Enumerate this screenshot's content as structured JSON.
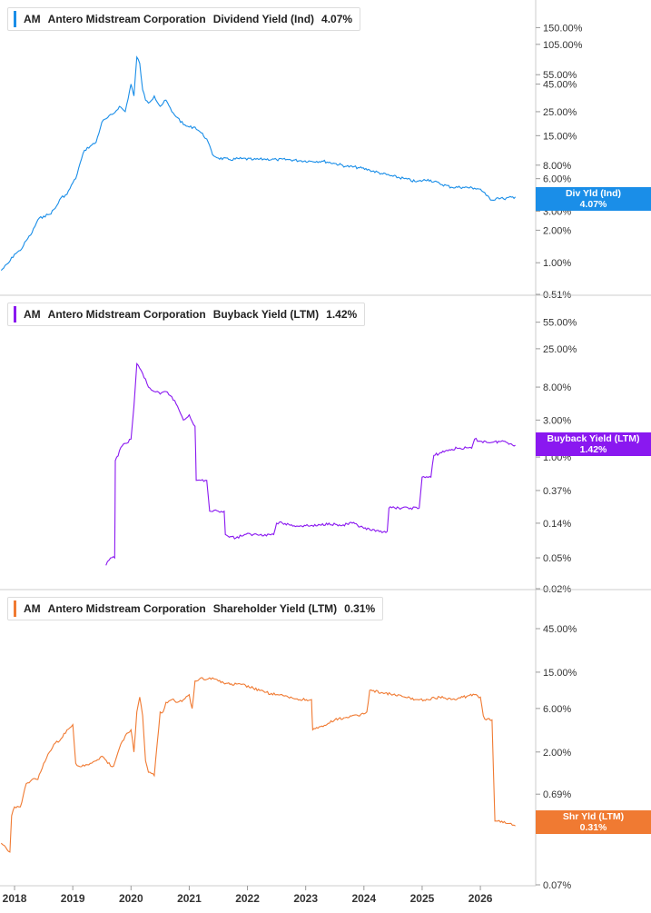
{
  "chart_data": [
    {
      "type": "line",
      "ticker": "AM",
      "company": "Antero Midstream Corporation",
      "metric": "Dividend Yield (Ind)",
      "current_value": "4.07%",
      "tag_label": "Div Yld (Ind)",
      "color": "#1a8ee8",
      "y_scale": "log",
      "ylim": [
        0.51,
        250
      ],
      "y_ticks": [
        {
          "label": "150.00%",
          "value": 150
        },
        {
          "label": "105.00%",
          "value": 105
        },
        {
          "label": "55.00%",
          "value": 55
        },
        {
          "label": "45.00%",
          "value": 45
        },
        {
          "label": "25.00%",
          "value": 25
        },
        {
          "label": "15.00%",
          "value": 15
        },
        {
          "label": "8.00%",
          "value": 8
        },
        {
          "label": "6.00%",
          "value": 6
        },
        {
          "label": "3.00%",
          "value": 3
        },
        {
          "label": "2.00%",
          "value": 2
        },
        {
          "label": "1.00%",
          "value": 1
        },
        {
          "label": "0.51%",
          "value": 0.51
        }
      ],
      "x": [
        2017.77,
        2017.9,
        2018.0,
        2018.1,
        2018.2,
        2018.3,
        2018.4,
        2018.5,
        2018.6,
        2018.7,
        2018.8,
        2018.9,
        2019.0,
        2019.05,
        2019.1,
        2019.2,
        2019.3,
        2019.4,
        2019.5,
        2019.6,
        2019.7,
        2019.8,
        2019.9,
        2020.0,
        2020.05,
        2020.1,
        2020.15,
        2020.2,
        2020.25,
        2020.3,
        2020.4,
        2020.5,
        2020.6,
        2020.7,
        2020.8,
        2020.9,
        2021.0,
        2021.1,
        2021.2,
        2021.3,
        2021.4,
        2021.5,
        2021.7,
        2021.9,
        2022.1,
        2022.3,
        2022.5,
        2022.7,
        2022.9,
        2023.1,
        2023.3,
        2023.5,
        2023.7,
        2023.9,
        2024.1,
        2024.3,
        2024.5,
        2024.7,
        2024.9,
        2025.1,
        2025.3,
        2025.5,
        2025.7,
        2025.9,
        2026.0,
        2026.1,
        2026.2,
        2026.3,
        2026.4,
        2026.6
      ],
      "values": [
        0.85,
        1.0,
        1.2,
        1.3,
        1.6,
        1.9,
        2.5,
        2.7,
        2.8,
        3.2,
        4.0,
        4.3,
        5.5,
        6.0,
        7.5,
        11,
        12,
        13,
        20,
        22,
        24,
        28,
        25,
        45,
        35,
        80,
        70,
        40,
        32,
        30,
        35,
        28,
        32,
        25,
        22,
        19,
        18,
        18,
        16,
        14,
        10,
        9.3,
        9.0,
        9.2,
        9.0,
        9.1,
        9.0,
        9.0,
        8.8,
        8.7,
        8.7,
        8.3,
        7.8,
        7.6,
        7.2,
        6.7,
        6.3,
        6.0,
        5.6,
        5.9,
        5.4,
        5.0,
        5.0,
        4.9,
        4.8,
        4.2,
        3.8,
        4.0,
        3.9,
        4.07
      ]
    },
    {
      "type": "line",
      "ticker": "AM",
      "company": "Antero Midstream Corporation",
      "metric": "Buyback Yield (LTM)",
      "current_value": "1.42%",
      "tag_label": "Buyback Yield (LTM)",
      "color": "#8a18f0",
      "y_scale": "log",
      "ylim": [
        0.02,
        110
      ],
      "y_ticks": [
        {
          "label": "55.00%",
          "value": 55
        },
        {
          "label": "25.00%",
          "value": 25
        },
        {
          "label": "8.00%",
          "value": 8
        },
        {
          "label": "3.00%",
          "value": 3
        },
        {
          "label": "1.00%",
          "value": 1
        },
        {
          "label": "0.37%",
          "value": 0.37
        },
        {
          "label": "0.14%",
          "value": 0.14
        },
        {
          "label": "0.05%",
          "value": 0.05
        },
        {
          "label": "0.02%",
          "value": 0.02
        }
      ],
      "x": [
        2019.57,
        2019.65,
        2019.72,
        2019.73,
        2019.85,
        2019.9,
        2020.0,
        2020.05,
        2020.1,
        2020.2,
        2020.3,
        2020.4,
        2020.5,
        2020.6,
        2020.7,
        2020.8,
        2020.9,
        2021.0,
        2021.1,
        2021.12,
        2021.2,
        2021.3,
        2021.35,
        2021.5,
        2021.6,
        2021.62,
        2021.8,
        2021.95,
        2022.1,
        2022.3,
        2022.45,
        2022.5,
        2022.6,
        2022.8,
        2023.0,
        2023.2,
        2023.4,
        2023.6,
        2023.8,
        2024.0,
        2024.2,
        2024.4,
        2024.43,
        2024.6,
        2024.8,
        2024.95,
        2025.0,
        2025.15,
        2025.2,
        2025.4,
        2025.6,
        2025.85,
        2025.9,
        2026.0,
        2026.2,
        2026.4,
        2026.6
      ],
      "values": [
        0.04,
        0.05,
        0.05,
        0.9,
        1.4,
        1.5,
        1.7,
        4.5,
        16,
        12,
        8,
        7,
        6.5,
        7,
        6,
        4.5,
        3,
        3.5,
        2.5,
        0.5,
        0.5,
        0.5,
        0.2,
        0.2,
        0.2,
        0.1,
        0.09,
        0.1,
        0.1,
        0.1,
        0.1,
        0.14,
        0.14,
        0.13,
        0.13,
        0.13,
        0.14,
        0.13,
        0.14,
        0.12,
        0.11,
        0.11,
        0.22,
        0.22,
        0.22,
        0.22,
        0.55,
        0.55,
        1.05,
        1.2,
        1.3,
        1.3,
        1.7,
        1.6,
        1.55,
        1.6,
        1.42
      ]
    },
    {
      "type": "line",
      "ticker": "AM",
      "company": "Antero Midstream Corporation",
      "metric": "Shareholder Yield (LTM)",
      "current_value": "0.31%",
      "tag_label": "Shr Yld (LTM)",
      "color": "#f07a32",
      "y_scale": "log",
      "ylim": [
        0.07,
        110
      ],
      "y_ticks": [
        {
          "label": "45.00%",
          "value": 45
        },
        {
          "label": "15.00%",
          "value": 15
        },
        {
          "label": "6.00%",
          "value": 6
        },
        {
          "label": "2.00%",
          "value": 2
        },
        {
          "label": "0.69%",
          "value": 0.69
        },
        {
          "label": "0.07%",
          "value": 0.07
        }
      ],
      "x": [
        2017.77,
        2017.85,
        2017.92,
        2017.95,
        2018.0,
        2018.1,
        2018.2,
        2018.3,
        2018.4,
        2018.5,
        2018.6,
        2018.7,
        2018.8,
        2018.9,
        2019.0,
        2019.05,
        2019.1,
        2019.2,
        2019.3,
        2019.4,
        2019.5,
        2019.6,
        2019.7,
        2019.8,
        2019.9,
        2020.0,
        2020.05,
        2020.1,
        2020.15,
        2020.2,
        2020.25,
        2020.3,
        2020.4,
        2020.5,
        2020.55,
        2020.6,
        2020.7,
        2020.8,
        2020.9,
        2021.0,
        2021.05,
        2021.1,
        2021.2,
        2021.3,
        2021.4,
        2021.5,
        2021.7,
        2021.9,
        2022.1,
        2022.3,
        2022.5,
        2022.7,
        2022.9,
        2023.1,
        2023.12,
        2023.3,
        2023.5,
        2023.7,
        2023.9,
        2024.05,
        2024.1,
        2024.3,
        2024.5,
        2024.7,
        2024.9,
        2025.1,
        2025.3,
        2025.5,
        2025.7,
        2025.9,
        2026.0,
        2026.05,
        2026.1,
        2026.2,
        2026.25,
        2026.3,
        2026.5,
        2026.6
      ],
      "values": [
        0.2,
        0.18,
        0.16,
        0.4,
        0.5,
        0.5,
        0.9,
        1.0,
        1.0,
        1.5,
        2.0,
        2.5,
        2.8,
        3.5,
        4.0,
        1.5,
        1.4,
        1.4,
        1.5,
        1.6,
        1.8,
        1.5,
        1.4,
        2.2,
        3.0,
        3.5,
        2.0,
        5.5,
        8.0,
        5.0,
        1.6,
        1.2,
        1.1,
        5.5,
        5.5,
        7.0,
        7.5,
        7.0,
        7.5,
        8.5,
        6.0,
        12,
        13,
        12.5,
        13,
        12,
        11,
        11,
        10,
        9,
        8.5,
        8.0,
        7.5,
        7.5,
        3.5,
        3.8,
        4.5,
        4.8,
        5.0,
        5.5,
        9.5,
        9.0,
        8.5,
        8.0,
        7.5,
        7.5,
        8.0,
        7.5,
        8.0,
        8.5,
        8.0,
        5.0,
        4.5,
        4.5,
        0.35,
        0.35,
        0.33,
        0.31
      ]
    }
  ],
  "x_axis": {
    "ticks": [
      {
        "label": "2018",
        "value": 2018
      },
      {
        "label": "2019",
        "value": 2019
      },
      {
        "label": "2020",
        "value": 2020
      },
      {
        "label": "2021",
        "value": 2021
      },
      {
        "label": "2022",
        "value": 2022
      },
      {
        "label": "2023",
        "value": 2023
      },
      {
        "label": "2024",
        "value": 2024
      },
      {
        "label": "2025",
        "value": 2025
      },
      {
        "label": "2026",
        "value": 2026
      }
    ]
  }
}
